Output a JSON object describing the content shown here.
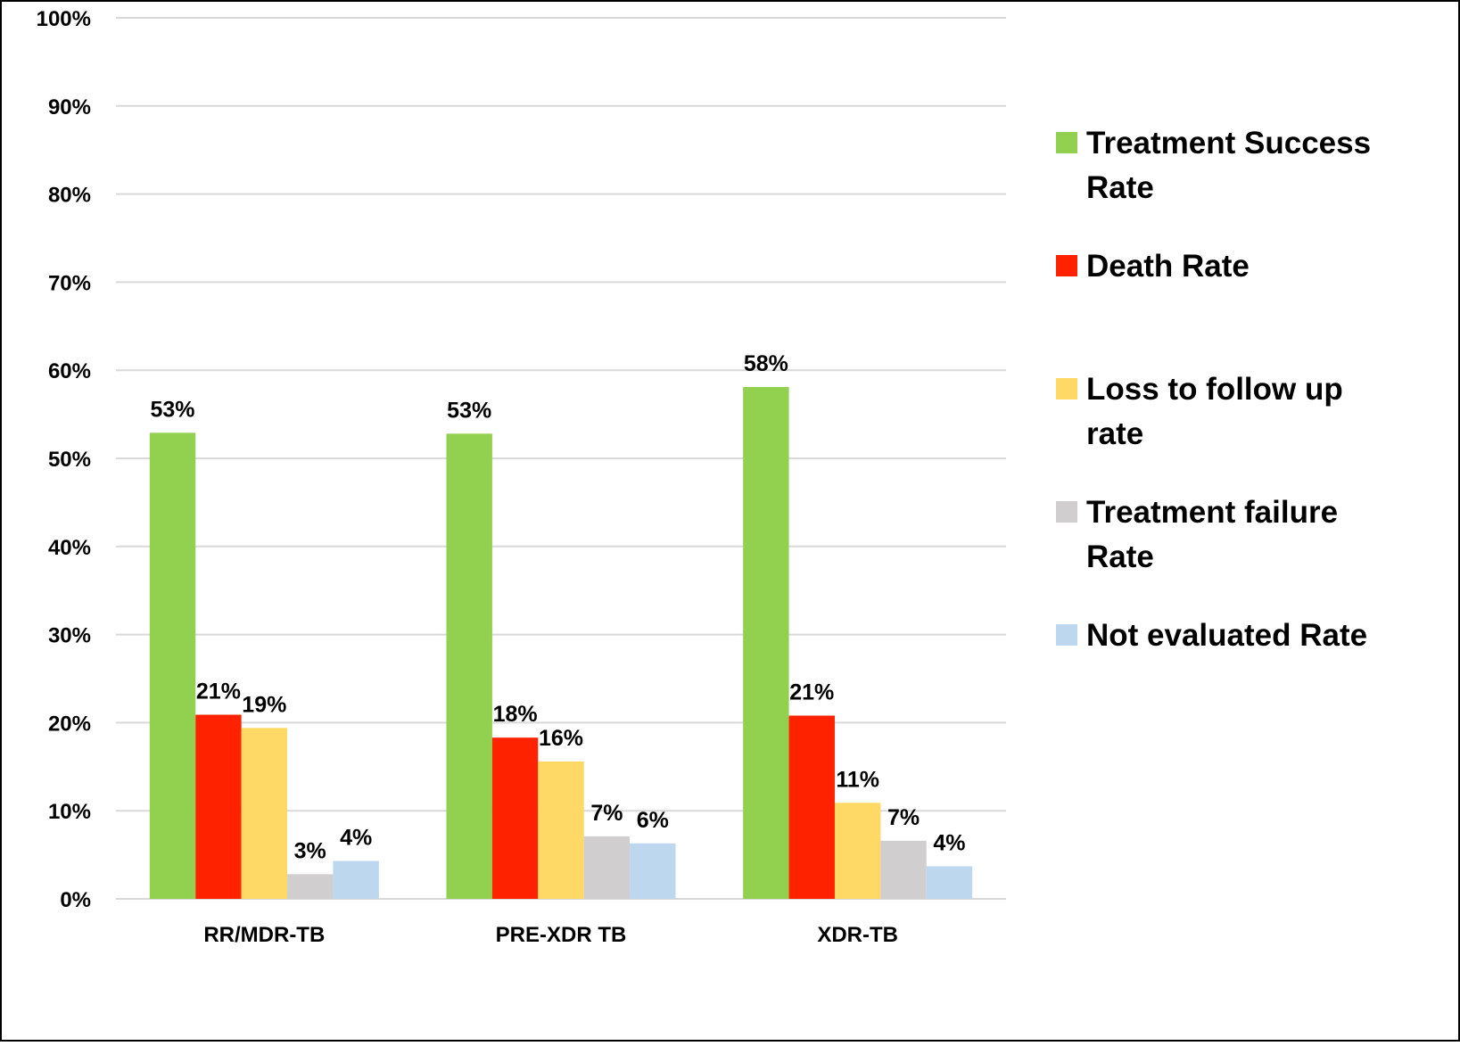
{
  "chart_data": {
    "type": "bar",
    "categories": [
      "RR/MDR-TB",
      "PRE-XDR TB",
      "XDR-TB"
    ],
    "series": [
      {
        "name": "Treatment Success Rate",
        "legend_lines": [
          "Treatment Success",
          "Rate"
        ],
        "color": "#92d050",
        "values": [
          52.9,
          52.8,
          58.1
        ],
        "labels": [
          "53%",
          "53%",
          "58%"
        ]
      },
      {
        "name": "Death Rate",
        "legend_lines": [
          "Death Rate"
        ],
        "color": "#ff2200",
        "values": [
          20.9,
          18.3,
          20.8
        ],
        "labels": [
          "21%",
          "18%",
          "21%"
        ]
      },
      {
        "name": "Loss to follow up rate",
        "legend_lines": [
          "Loss to follow up",
          "rate"
        ],
        "color": "#ffd966",
        "values": [
          19.4,
          15.6,
          10.9
        ],
        "labels": [
          "19%",
          "16%",
          "11%"
        ]
      },
      {
        "name": "Treatment failure Rate",
        "legend_lines": [
          "Treatment failure",
          "Rate"
        ],
        "color": "#d0cece",
        "values": [
          2.8,
          7.1,
          6.6
        ],
        "labels": [
          "3%",
          "7%",
          "7%"
        ]
      },
      {
        "name": "Not evaluated Rate",
        "legend_lines": [
          "Not evaluated Rate"
        ],
        "color": "#bdd7ee",
        "values": [
          4.3,
          6.3,
          3.7
        ],
        "labels": [
          "4%",
          "6%",
          "4%"
        ]
      }
    ],
    "y_ticks": [
      "0%",
      "10%",
      "20%",
      "30%",
      "40%",
      "50%",
      "60%",
      "70%",
      "80%",
      "90%",
      "100%"
    ],
    "ylim": [
      0,
      100
    ],
    "grid": true,
    "legend_position": "right",
    "colors": {
      "grid": "#d9d9d9",
      "axis": "#d9d9d9",
      "border": "#000000",
      "text": "#000000"
    }
  }
}
